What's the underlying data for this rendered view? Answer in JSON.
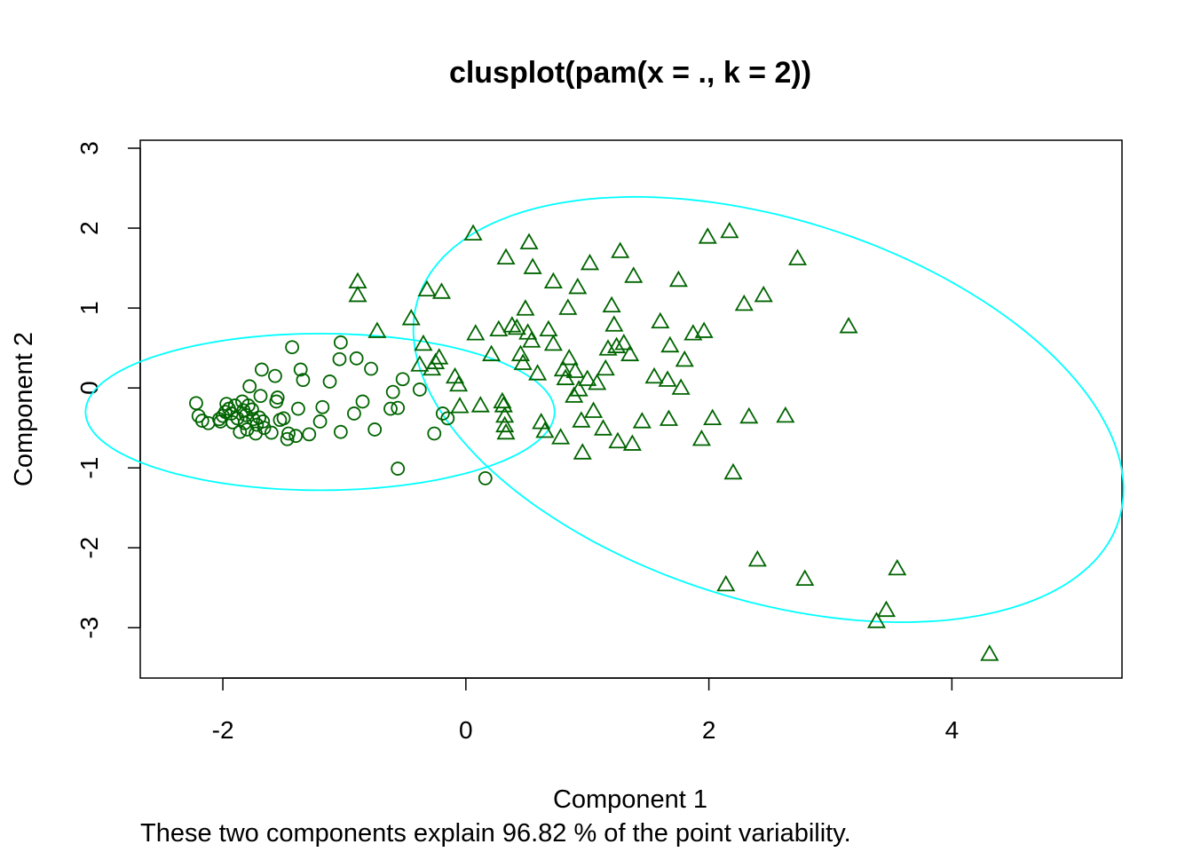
{
  "chart_data": {
    "type": "scatter",
    "title": "clusplot(pam(x = ., k = 2))",
    "xlabel": "Component 1",
    "ylabel": "Component 2",
    "subtitle": "These two components explain 96.82 % of the point variability.",
    "xlim": [
      -2.68,
      5.4
    ],
    "ylim": [
      -3.63,
      3.1
    ],
    "x_ticks": [
      "-2",
      "0",
      "2",
      "4"
    ],
    "y_ticks": [
      "-3",
      "-2",
      "-1",
      "0",
      "1",
      "2",
      "3"
    ],
    "x_tick_values": [
      -2,
      0,
      2,
      4
    ],
    "y_tick_values": [
      -3,
      -2,
      -1,
      0,
      1,
      2,
      3
    ],
    "grid": false,
    "colors": {
      "points": "#006400",
      "ellipse": "#00ffff",
      "frame": "#000000"
    },
    "clusters": [
      {
        "marker": "circle",
        "ellipse": {
          "center": [
            -1.2,
            -0.3
          ],
          "semi_axis_x": 1.93,
          "semi_axis_y": 0.98,
          "rotation_deg": 0
        },
        "points": [
          [
            -2.22,
            -0.19
          ],
          [
            -2.2,
            -0.35
          ],
          [
            -2.17,
            -0.41
          ],
          [
            -2.12,
            -0.44
          ],
          [
            -2.03,
            -0.39
          ],
          [
            -2.02,
            -0.42
          ],
          [
            -2.0,
            -0.35
          ],
          [
            -1.98,
            -0.3
          ],
          [
            -1.97,
            -0.2
          ],
          [
            -1.95,
            -0.26
          ],
          [
            -1.93,
            -0.32
          ],
          [
            -1.92,
            -0.43
          ],
          [
            -1.9,
            -0.22
          ],
          [
            -1.88,
            -0.38
          ],
          [
            -1.86,
            -0.55
          ],
          [
            -1.84,
            -0.17
          ],
          [
            -1.83,
            -0.28
          ],
          [
            -1.82,
            -0.44
          ],
          [
            -1.81,
            -0.34
          ],
          [
            -1.8,
            -0.52
          ],
          [
            -1.79,
            -0.22
          ],
          [
            -1.78,
            0.02
          ],
          [
            -1.76,
            -0.27
          ],
          [
            -1.75,
            -0.39
          ],
          [
            -1.73,
            -0.57
          ],
          [
            -1.72,
            -0.46
          ],
          [
            -1.7,
            -0.37
          ],
          [
            -1.69,
            -0.1
          ],
          [
            -1.68,
            0.23
          ],
          [
            -1.67,
            -0.42
          ],
          [
            -1.66,
            -0.5
          ],
          [
            -1.6,
            -0.56
          ],
          [
            -1.57,
            0.15
          ],
          [
            -1.56,
            -0.17
          ],
          [
            -1.55,
            -0.12
          ],
          [
            -1.53,
            -0.4
          ],
          [
            -1.5,
            -0.38
          ],
          [
            -1.47,
            -0.64
          ],
          [
            -1.46,
            -0.57
          ],
          [
            -1.43,
            0.51
          ],
          [
            -1.4,
            -0.6
          ],
          [
            -1.38,
            -0.26
          ],
          [
            -1.36,
            0.23
          ],
          [
            -1.34,
            0.1
          ],
          [
            -1.29,
            -0.58
          ],
          [
            -1.2,
            -0.42
          ],
          [
            -1.18,
            -0.24
          ],
          [
            -1.12,
            0.08
          ],
          [
            -1.04,
            0.36
          ],
          [
            -1.03,
            0.57
          ],
          [
            -1.03,
            -0.55
          ],
          [
            -0.92,
            -0.32
          ],
          [
            -0.9,
            0.37
          ],
          [
            -0.85,
            -0.17
          ],
          [
            -0.78,
            0.24
          ],
          [
            -0.75,
            -0.52
          ],
          [
            -0.62,
            -0.26
          ],
          [
            -0.6,
            -0.05
          ],
          [
            -0.56,
            -0.25
          ],
          [
            -0.52,
            0.11
          ],
          [
            -0.56,
            -1.01
          ],
          [
            -0.38,
            -0.02
          ],
          [
            -0.26,
            -0.57
          ],
          [
            -0.19,
            -0.32
          ],
          [
            -0.15,
            -0.38
          ],
          [
            0.16,
            -1.13
          ]
        ]
      },
      {
        "marker": "triangle",
        "ellipse": {
          "center": [
            2.49,
            -0.27
          ],
          "semi_axis_x": 3.29,
          "semi_axis_y": 2.19,
          "rotation_deg": -38
        },
        "points": [
          [
            -0.89,
            1.33
          ],
          [
            -0.89,
            1.16
          ],
          [
            -0.73,
            0.71
          ],
          [
            -0.45,
            0.87
          ],
          [
            -0.38,
            0.29
          ],
          [
            -0.35,
            0.55
          ],
          [
            -0.32,
            1.23
          ],
          [
            -0.28,
            0.24
          ],
          [
            -0.25,
            0.32
          ],
          [
            -0.22,
            0.38
          ],
          [
            -0.2,
            1.2
          ],
          [
            -0.09,
            0.14
          ],
          [
            -0.06,
            0.04
          ],
          [
            -0.05,
            -0.23
          ],
          [
            0.06,
            1.93
          ],
          [
            0.08,
            0.68
          ],
          [
            0.12,
            -0.22
          ],
          [
            0.21,
            0.42
          ],
          [
            0.27,
            0.73
          ],
          [
            0.3,
            -0.17
          ],
          [
            0.31,
            -0.22
          ],
          [
            0.32,
            -0.35
          ],
          [
            0.32,
            -0.47
          ],
          [
            0.33,
            -0.56
          ],
          [
            0.33,
            1.63
          ],
          [
            0.38,
            0.78
          ],
          [
            0.42,
            0.75
          ],
          [
            0.45,
            0.42
          ],
          [
            0.47,
            0.31
          ],
          [
            0.49,
            0.99
          ],
          [
            0.51,
            0.69
          ],
          [
            0.52,
            1.82
          ],
          [
            0.54,
            0.59
          ],
          [
            0.55,
            1.51
          ],
          [
            0.59,
            0.18
          ],
          [
            0.62,
            -0.43
          ],
          [
            0.65,
            -0.54
          ],
          [
            0.68,
            0.73
          ],
          [
            0.72,
            0.55
          ],
          [
            0.72,
            1.33
          ],
          [
            0.78,
            -0.62
          ],
          [
            0.8,
            0.23
          ],
          [
            0.82,
            0.12
          ],
          [
            0.84,
            1.0
          ],
          [
            0.85,
            0.37
          ],
          [
            0.89,
            -0.1
          ],
          [
            0.9,
            0.21
          ],
          [
            0.92,
            1.26
          ],
          [
            0.93,
            -0.02
          ],
          [
            0.95,
            -0.41
          ],
          [
            0.96,
            -0.81
          ],
          [
            1.0,
            0.11
          ],
          [
            1.02,
            1.56
          ],
          [
            1.05,
            -0.29
          ],
          [
            1.08,
            0.06
          ],
          [
            1.13,
            -0.51
          ],
          [
            1.15,
            0.24
          ],
          [
            1.17,
            0.49
          ],
          [
            1.2,
            1.03
          ],
          [
            1.22,
            0.79
          ],
          [
            1.24,
            0.52
          ],
          [
            1.25,
            -0.67
          ],
          [
            1.27,
            1.71
          ],
          [
            1.3,
            0.56
          ],
          [
            1.35,
            0.42
          ],
          [
            1.37,
            -0.7
          ],
          [
            1.38,
            1.4
          ],
          [
            1.45,
            -0.42
          ],
          [
            1.55,
            0.14
          ],
          [
            1.6,
            0.83
          ],
          [
            1.66,
            0.1
          ],
          [
            1.67,
            -0.39
          ],
          [
            1.68,
            0.53
          ],
          [
            1.75,
            1.35
          ],
          [
            1.77,
            0.0
          ],
          [
            1.8,
            0.35
          ],
          [
            1.87,
            0.68
          ],
          [
            1.94,
            -0.64
          ],
          [
            1.96,
            0.71
          ],
          [
            1.99,
            1.89
          ],
          [
            2.03,
            -0.38
          ],
          [
            2.17,
            1.96
          ],
          [
            2.2,
            -1.06
          ],
          [
            2.14,
            -2.46
          ],
          [
            2.29,
            1.05
          ],
          [
            2.33,
            -0.36
          ],
          [
            2.4,
            -2.15
          ],
          [
            2.45,
            1.16
          ],
          [
            2.63,
            -0.35
          ],
          [
            2.73,
            1.62
          ],
          [
            2.79,
            -2.39
          ],
          [
            3.15,
            0.77
          ],
          [
            3.38,
            -2.92
          ],
          [
            3.46,
            -2.78
          ],
          [
            3.55,
            -2.26
          ],
          [
            4.31,
            -3.33
          ]
        ]
      }
    ]
  }
}
